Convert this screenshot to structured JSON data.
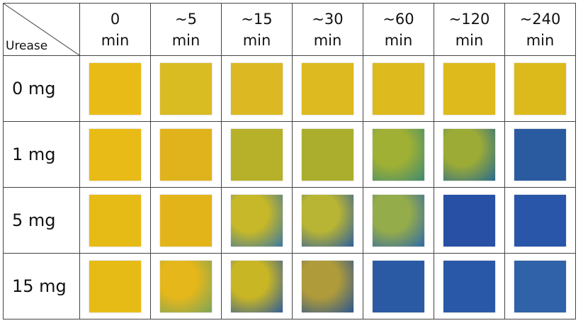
{
  "header_label": "Urease",
  "columns": [
    {
      "top": "0",
      "bottom": "min"
    },
    {
      "top": "~5",
      "bottom": "min"
    },
    {
      "top": "~15",
      "bottom": "min"
    },
    {
      "top": "~30",
      "bottom": "min"
    },
    {
      "top": "~60",
      "bottom": "min"
    },
    {
      "top": "~120",
      "bottom": "min"
    },
    {
      "top": "~240",
      "bottom": "min"
    }
  ],
  "rows": [
    {
      "label": "0 mg",
      "cells": [
        {
          "color": "#e9bb16"
        },
        {
          "color": "#d9bb22"
        },
        {
          "color": "#dcb922"
        },
        {
          "color": "#dcba20"
        },
        {
          "color": "#ddba1e"
        },
        {
          "color": "#deba1c"
        },
        {
          "color": "#dcba1c"
        }
      ]
    },
    {
      "label": "1 mg",
      "cells": [
        {
          "color": "#e8bb16"
        },
        {
          "color": "#e0b31c"
        },
        {
          "color": "#b6b128"
        },
        {
          "color": "#aaae2c"
        },
        {
          "color": "#9fb034",
          "color2": "#3e8a72"
        },
        {
          "color": "#9bab36",
          "color2": "#276a8e"
        },
        {
          "color": "#2a5ba0"
        }
      ]
    },
    {
      "label": "5 mg",
      "cells": [
        {
          "color": "#e7bb16"
        },
        {
          "color": "#e3b41a"
        },
        {
          "color": "#c6b828",
          "color2": "#3c78a0"
        },
        {
          "color": "#b8b434",
          "color2": "#2d5f9e"
        },
        {
          "color": "#95ac4a",
          "color2": "#2f6aa8"
        },
        {
          "color": "#2851a6"
        },
        {
          "color": "#2956a8"
        }
      ]
    },
    {
      "label": "15 mg",
      "cells": [
        {
          "color": "#e7bb16"
        },
        {
          "color": "#e5b71a",
          "color2": "#7ca45c"
        },
        {
          "color": "#c9b624",
          "color2": "#305c9a"
        },
        {
          "color": "#b09b3a",
          "color2": "#2a5590"
        },
        {
          "color": "#2a5aa4"
        },
        {
          "color": "#2a58a8"
        },
        {
          "color": "#2f62a8"
        }
      ]
    }
  ]
}
